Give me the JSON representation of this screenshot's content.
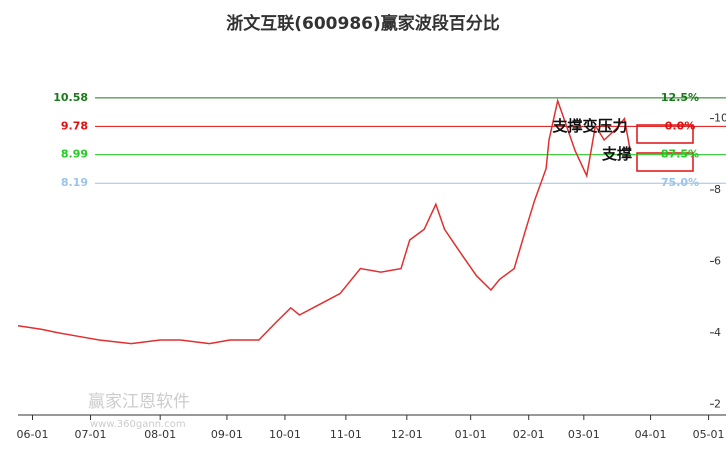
{
  "chart_data": {
    "type": "line",
    "title": "浙文互联(600986)赢家波段百分比",
    "series": [
      {
        "color": "#e03030",
        "x": [
          0,
          8,
          14,
          21,
          28,
          39,
          49,
          56,
          66,
          73,
          83,
          89,
          94,
          97,
          104,
          111,
          118,
          125,
          132,
          135,
          140,
          144,
          147,
          152,
          158,
          163,
          166,
          171,
          175,
          178,
          182,
          183,
          186,
          189,
          192,
          196,
          199,
          202,
          206,
          209,
          211
        ],
        "values": [
          4.2,
          4.1,
          4.0,
          3.9,
          3.8,
          3.7,
          3.8,
          3.8,
          3.7,
          3.8,
          3.8,
          4.3,
          4.7,
          4.5,
          4.8,
          5.1,
          5.8,
          5.7,
          5.8,
          6.6,
          6.9,
          7.6,
          6.9,
          6.3,
          5.6,
          5.2,
          5.5,
          5.8,
          6.9,
          7.7,
          8.6,
          9.4,
          10.5,
          9.8,
          9.1,
          8.4,
          9.8,
          9.4,
          9.7,
          10.0,
          9.1
        ]
      }
    ],
    "xlim": [
      0,
      244
    ],
    "xticks": [
      {
        "value": 5,
        "label": "06-01"
      },
      {
        "value": 25,
        "label": "07-01"
      },
      {
        "value": 49,
        "label": "08-01"
      },
      {
        "value": 72,
        "label": "09-01"
      },
      {
        "value": 92,
        "label": "10-01"
      },
      {
        "value": 113,
        "label": "11-01"
      },
      {
        "value": 134,
        "label": "12-01"
      },
      {
        "value": 156,
        "label": "01-01"
      },
      {
        "value": 176,
        "label": "02-01"
      },
      {
        "value": 195,
        "label": "03-01"
      },
      {
        "value": 218,
        "label": "04-01"
      },
      {
        "value": 238,
        "label": "05-01"
      }
    ],
    "ylim": [
      1.7,
      12.2
    ],
    "yticks": [
      2,
      4,
      6,
      8,
      10
    ],
    "levels": [
      {
        "value": 10.58,
        "percent": "12.5%",
        "color": "#1a7a1a"
      },
      {
        "value": 9.78,
        "percent": "0.0%",
        "color": "#e01010"
      },
      {
        "value": 8.99,
        "percent": "87.5%",
        "color": "#22cc22"
      },
      {
        "value": 8.19,
        "percent": "75.0%",
        "color": "#9cc4e8"
      }
    ],
    "annotations": [
      "支撑变压力",
      "支撑"
    ],
    "watermark": [
      "赢家江恩软件",
      "www.360gann.com"
    ]
  }
}
